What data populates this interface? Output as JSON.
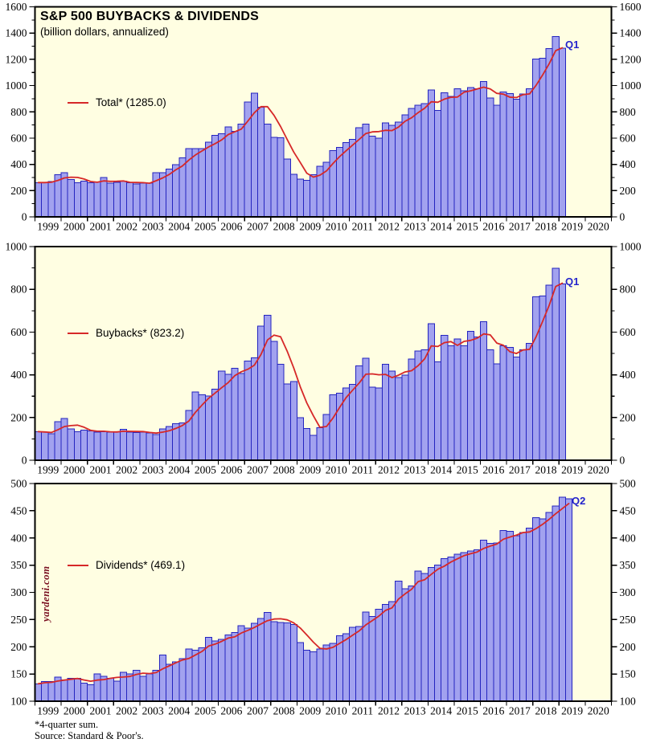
{
  "page": {
    "title": "S&P 500 BUYBACKS & DIVIDENDS",
    "subtitle": "(billion dollars, annualized)",
    "footnote": "*4-quarter sum.",
    "source": "Source: Standard & Poor's.",
    "watermark": "yardeni.com"
  },
  "colors": {
    "plot_bg": "#fffee2",
    "bar_fill": "#a2a2ef",
    "bar_stroke": "#2424bf",
    "line": "#d62828",
    "frame": "#000000",
    "tick_text": "#000000",
    "q_label": "#2323cc",
    "watermark": "#7a1022"
  },
  "x_axis": {
    "start_year": 1999,
    "end_year": 2020,
    "year_labels": [
      "1999",
      "2000",
      "2001",
      "2002",
      "2003",
      "2004",
      "2005",
      "2006",
      "2007",
      "2008",
      "2009",
      "2010",
      "2011",
      "2012",
      "2013",
      "2014",
      "2015",
      "2016",
      "2017",
      "2018",
      "2019",
      "2020"
    ]
  },
  "chart_data": [
    {
      "type": "bar",
      "name": "total",
      "legend_label": "Total* (1285.0)",
      "end_label": "Q1",
      "line_end_value": 1285.0,
      "ylabel": "billion dollars, annualized",
      "ylim": [
        0,
        1600
      ],
      "ytick_step": 200,
      "yminor_step": 100,
      "first_quarter": "1999Q1",
      "last_quarter": "2019Q1",
      "line_note": "red line = 4-quarter sum",
      "values": [
        261,
        261,
        269,
        320,
        336,
        285,
        261,
        271,
        259,
        265,
        301,
        257,
        262,
        273,
        260,
        252,
        258,
        256,
        335,
        337,
        365,
        397,
        450,
        520,
        520,
        520,
        570,
        622,
        632,
        685,
        652,
        706,
        876,
        941,
        835,
        707,
        607,
        604,
        442,
        325,
        287,
        277,
        322,
        385,
        416,
        505,
        529,
        565,
        590,
        678,
        707,
        615,
        600,
        717,
        696,
        723,
        776,
        826,
        851,
        862,
        968,
        812,
        945,
        918,
        976,
        960,
        985,
        976,
        1032,
        905,
        850,
        952,
        940,
        896,
        936,
        976,
        1201,
        1208,
        1283,
        1374,
        1284
      ]
    },
    {
      "type": "bar",
      "name": "buybacks",
      "legend_label": "Buybacks* (823.2)",
      "end_label": "Q1",
      "line_end_value": 823.2,
      "ylim": [
        0,
        1000
      ],
      "ytick_step": 200,
      "yminor_step": 100,
      "first_quarter": "1999Q1",
      "last_quarter": "2019Q1",
      "line_note": "red line = 4-quarter sum",
      "values": [
        134,
        131,
        125,
        180,
        196,
        147,
        134,
        141,
        137,
        131,
        134,
        131,
        134,
        144,
        132,
        129,
        132,
        128,
        120,
        147,
        157,
        171,
        174,
        233,
        319,
        307,
        301,
        332,
        418,
        403,
        430,
        406,
        465,
        480,
        628,
        679,
        556,
        449,
        358,
        368,
        200,
        148,
        116,
        153,
        215,
        307,
        313,
        338,
        355,
        441,
        477,
        343,
        339,
        449,
        417,
        388,
        398,
        473,
        512,
        517,
        639,
        461,
        585,
        536,
        568,
        536,
        604,
        578,
        648,
        517,
        451,
        536,
        528,
        483,
        517,
        547,
        765,
        769,
        820,
        899,
        826
      ]
    },
    {
      "type": "bar",
      "name": "dividends",
      "legend_label": "Dividends* (469.1)",
      "end_label": "Q2",
      "line_end_value": 469.1,
      "ylim": [
        100,
        500
      ],
      "ytick_step": 50,
      "yminor_step": 0,
      "first_quarter": "1999Q1",
      "last_quarter": "2019Q2",
      "line_note": "red line = 4-quarter sum",
      "values": [
        132,
        136,
        136,
        144,
        139,
        142,
        142,
        133,
        130,
        150,
        146,
        142,
        137,
        153,
        150,
        157,
        146,
        150,
        157,
        185,
        168,
        172,
        178,
        196,
        194,
        198,
        217,
        211,
        214,
        222,
        226,
        239,
        234,
        243,
        252,
        263,
        246,
        245,
        244,
        241,
        208,
        194,
        191,
        196,
        203,
        206,
        220,
        224,
        236,
        237,
        264,
        256,
        269,
        278,
        283,
        321,
        307,
        312,
        339,
        335,
        346,
        350,
        362,
        365,
        370,
        373,
        376,
        378,
        396,
        390,
        391,
        414,
        412,
        404,
        410,
        418,
        437,
        435,
        447,
        459,
        475,
        472
      ]
    }
  ]
}
